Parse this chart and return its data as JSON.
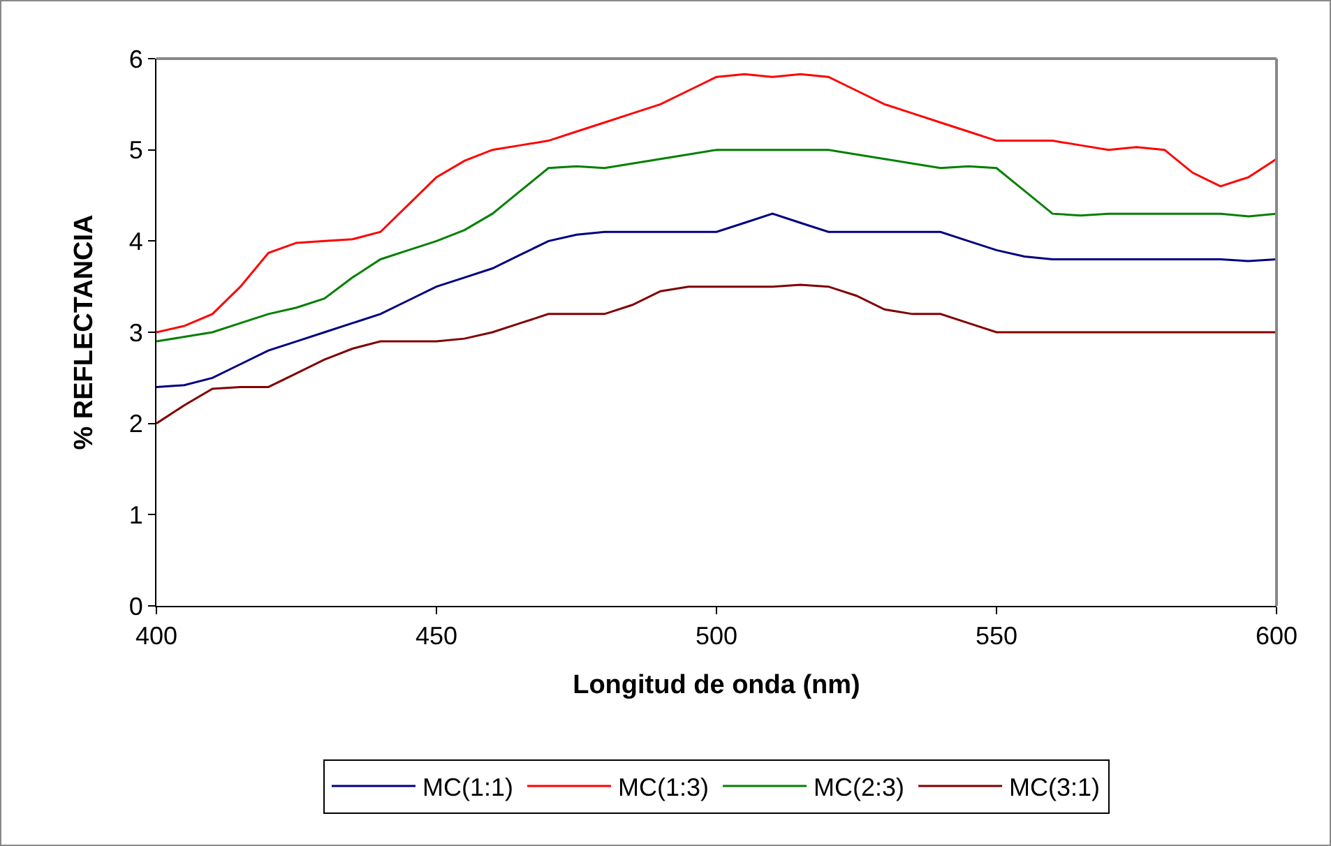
{
  "chart_data": {
    "type": "line",
    "xlabel": "Longitud de onda (nm)",
    "ylabel": "% REFLECTANCIA",
    "x": [
      400,
      405,
      410,
      415,
      420,
      425,
      430,
      435,
      440,
      445,
      450,
      455,
      460,
      465,
      470,
      475,
      480,
      485,
      490,
      495,
      500,
      505,
      510,
      515,
      520,
      525,
      530,
      535,
      540,
      545,
      550,
      555,
      560,
      565,
      570,
      575,
      580,
      585,
      590,
      595,
      600
    ],
    "series": [
      {
        "name": "MC(1:1)",
        "color": "#000080",
        "values": [
          2.4,
          2.42,
          2.5,
          2.65,
          2.8,
          2.9,
          3.0,
          3.1,
          3.2,
          3.35,
          3.5,
          3.6,
          3.7,
          3.85,
          4.0,
          4.07,
          4.1,
          4.1,
          4.1,
          4.1,
          4.1,
          4.2,
          4.3,
          4.2,
          4.1,
          4.1,
          4.1,
          4.1,
          4.1,
          4.0,
          3.9,
          3.83,
          3.8,
          3.8,
          3.8,
          3.8,
          3.8,
          3.8,
          3.8,
          3.78,
          3.8
        ]
      },
      {
        "name": "MC(1:3)",
        "color": "#ff0000",
        "values": [
          3.0,
          3.07,
          3.2,
          3.5,
          3.87,
          3.98,
          4.0,
          4.02,
          4.1,
          4.4,
          4.7,
          4.88,
          5.0,
          5.05,
          5.1,
          5.2,
          5.3,
          5.4,
          5.5,
          5.65,
          5.8,
          5.83,
          5.8,
          5.83,
          5.8,
          5.65,
          5.5,
          5.4,
          5.3,
          5.2,
          5.1,
          5.1,
          5.1,
          5.05,
          5.0,
          5.03,
          5.0,
          4.75,
          4.6,
          4.7,
          4.9
        ]
      },
      {
        "name": "MC(2:3)",
        "color": "#008000",
        "values": [
          2.9,
          2.95,
          3.0,
          3.1,
          3.2,
          3.27,
          3.37,
          3.6,
          3.8,
          3.9,
          4.0,
          4.12,
          4.3,
          4.55,
          4.8,
          4.82,
          4.8,
          4.85,
          4.9,
          4.95,
          5.0,
          5.0,
          5.0,
          5.0,
          5.0,
          4.95,
          4.9,
          4.85,
          4.8,
          4.82,
          4.8,
          4.55,
          4.3,
          4.28,
          4.3,
          4.3,
          4.3,
          4.3,
          4.3,
          4.27,
          4.3
        ]
      },
      {
        "name": "MC(3:1)",
        "color": "#800000",
        "values": [
          2.0,
          2.2,
          2.38,
          2.4,
          2.4,
          2.55,
          2.7,
          2.82,
          2.9,
          2.9,
          2.9,
          2.93,
          3.0,
          3.1,
          3.2,
          3.2,
          3.2,
          3.3,
          3.45,
          3.5,
          3.5,
          3.5,
          3.5,
          3.52,
          3.5,
          3.4,
          3.25,
          3.2,
          3.2,
          3.1,
          3.0,
          3.0,
          3.0,
          3.0,
          3.0,
          3.0,
          3.0,
          3.0,
          3.0,
          3.0,
          3.0
        ]
      }
    ],
    "xlim": [
      400,
      600
    ],
    "xticks": [
      400,
      450,
      500,
      550,
      600
    ],
    "ylim": [
      0,
      6
    ],
    "yticks": [
      0,
      1,
      2,
      3,
      4,
      5,
      6
    ],
    "grid": false,
    "legend": "bottom",
    "marker": "none",
    "line_style": "solid"
  }
}
